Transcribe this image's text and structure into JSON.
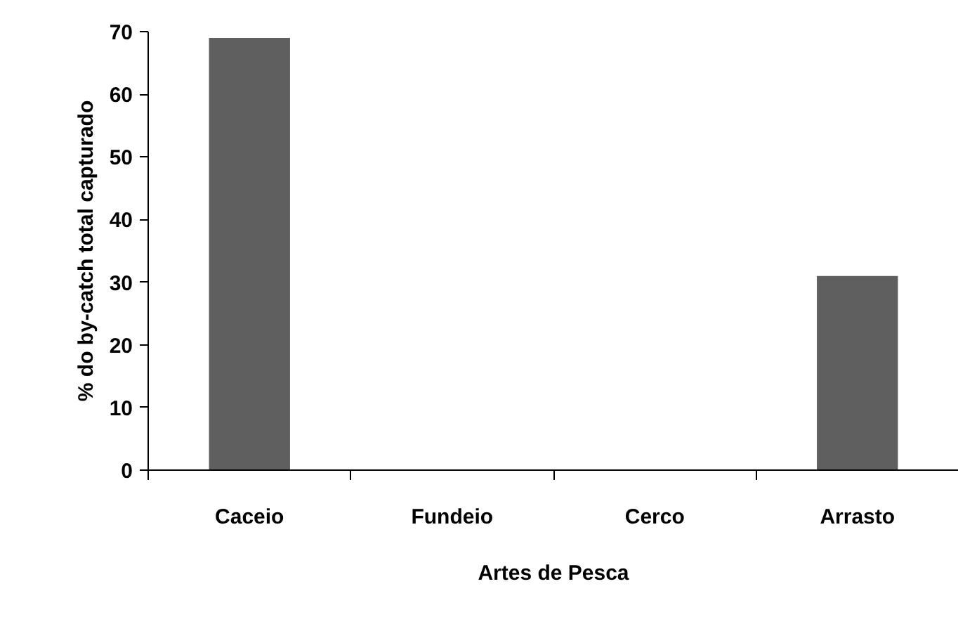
{
  "chart_data": {
    "type": "bar",
    "xlabel": "Artes de Pesca",
    "ylabel": "% do by-catch total capturado",
    "categories": [
      "Caceio",
      "Fundeio",
      "Cerco",
      "Arrasto"
    ],
    "values": [
      69,
      0,
      0,
      31
    ],
    "color": "#5f5f5f",
    "ylim": [
      0,
      70
    ],
    "yticks": [
      0,
      10,
      20,
      30,
      40,
      50,
      60,
      70
    ],
    "grid": false
  }
}
